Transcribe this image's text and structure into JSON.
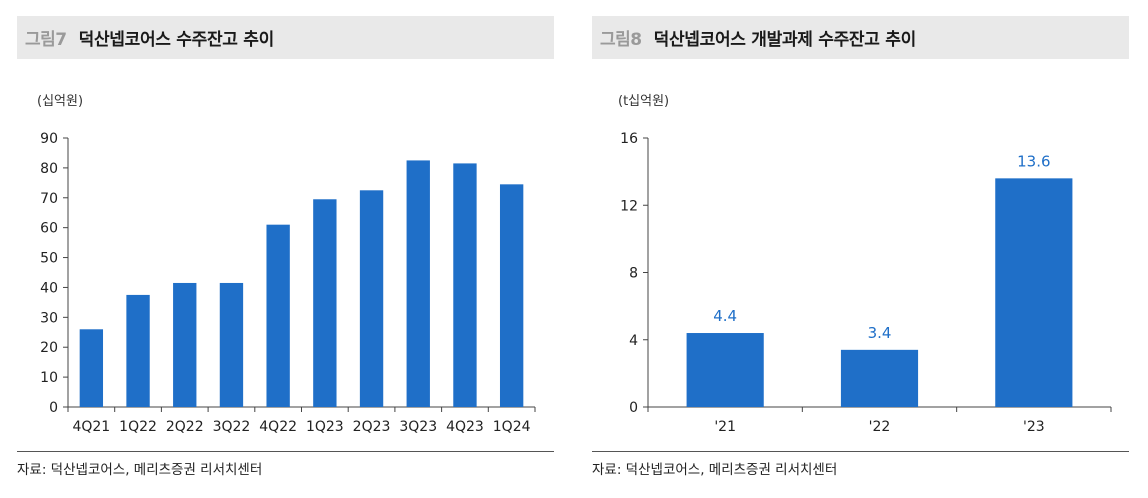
{
  "colors": {
    "bar": "#1f6fc8",
    "axis": "#444444",
    "title_bg": "#e9e9e9",
    "value_label": "#1f6fc8"
  },
  "figures": [
    {
      "fig_label": "그림7",
      "title": "덕산넵코어스 수주잔고 추이",
      "unit": "(십억원)",
      "source": "자료: 덕산넵코어스, 메리츠증권 리서치센터"
    },
    {
      "fig_label": "그림8",
      "title": "덕산넵코어스 개발과제 수주잔고 추이",
      "unit": "(t십억원)",
      "source": "자료: 덕산넵코어스, 메리츠증권 리서치센터"
    }
  ],
  "chart_data": [
    {
      "type": "bar",
      "title": "덕산넵코어스 수주잔고 추이",
      "ylabel": "(십억원)",
      "categories": [
        "4Q21",
        "1Q22",
        "2Q22",
        "3Q22",
        "4Q22",
        "1Q23",
        "2Q23",
        "3Q23",
        "4Q23",
        "1Q24"
      ],
      "values": [
        26,
        37.5,
        41.5,
        41.5,
        61,
        69.5,
        72.5,
        82.5,
        81.5,
        74.5
      ],
      "ylim": [
        0,
        90
      ],
      "yticks": [
        0,
        10,
        20,
        30,
        40,
        50,
        60,
        70,
        80,
        90
      ],
      "grid": false,
      "data_labels": false
    },
    {
      "type": "bar",
      "title": "덕산넵코어스 개발과제 수주잔고 추이",
      "ylabel": "(t십억원)",
      "categories": [
        "'21",
        "'22",
        "'23"
      ],
      "values": [
        4.4,
        3.4,
        13.6
      ],
      "value_labels": [
        "4.4",
        "3.4",
        "13.6"
      ],
      "ylim": [
        0,
        16
      ],
      "yticks": [
        0,
        4,
        8,
        12,
        16
      ],
      "grid": false,
      "data_labels": true
    }
  ]
}
